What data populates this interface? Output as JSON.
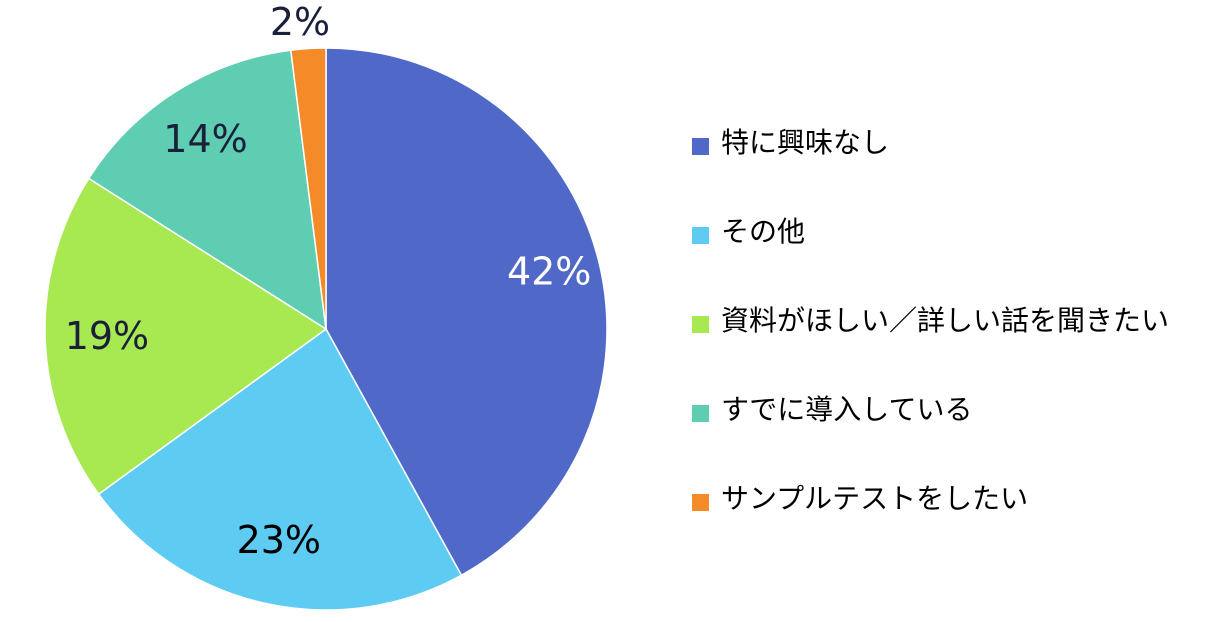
{
  "chart_data": {
    "type": "pie",
    "title": "",
    "slices": [
      {
        "label": "特に興味なし",
        "value": 42,
        "display": "42%",
        "color": "#5068C8",
        "label_color": "#ffffff"
      },
      {
        "label": "その他",
        "value": 23,
        "display": "23%",
        "color": "#5ECBF3",
        "label_color": "#000000"
      },
      {
        "label": "資料がほしい／詳しい話を聞きたい",
        "value": 19,
        "display": "19%",
        "color": "#A8E952",
        "label_color": "#1a1f3a"
      },
      {
        "label": "すでに導入している",
        "value": 14,
        "display": "14%",
        "color": "#5ECDB2",
        "label_color": "#1a1f3a"
      },
      {
        "label": "サンプルテストをしたい",
        "value": 2,
        "display": "2%",
        "color": "#F58A28",
        "label_color": "#1a1f3a"
      }
    ],
    "legend_position": "right"
  }
}
